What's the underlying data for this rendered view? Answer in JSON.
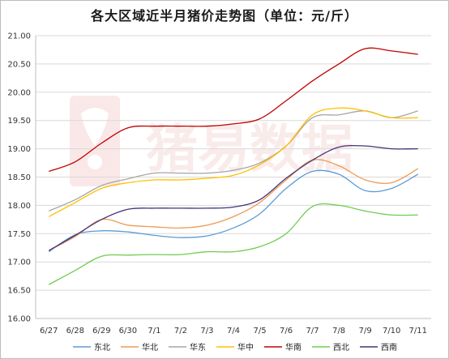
{
  "chart_data": {
    "type": "line",
    "title": "各大区域近半月猪价走势图（单位：元/斤）",
    "x": [
      "6/27",
      "6/28",
      "6/29",
      "6/30",
      "7/1",
      "7/2",
      "7/3",
      "7/4",
      "7/5",
      "7/6",
      "7/7",
      "7/8",
      "7/9",
      "7/10",
      "7/11"
    ],
    "ylim": [
      16.0,
      21.0
    ],
    "yticks": [
      "16.00",
      "16.50",
      "17.00",
      "17.50",
      "18.00",
      "18.50",
      "19.00",
      "19.50",
      "20.00",
      "20.50",
      "21.00"
    ],
    "grid": true,
    "legend_position": "bottom",
    "series": [
      {
        "name": "东北",
        "color": "#5b9bd5",
        "values": [
          17.18,
          17.48,
          17.55,
          17.53,
          17.47,
          17.43,
          17.46,
          17.6,
          17.85,
          18.3,
          18.6,
          18.55,
          18.26,
          18.3,
          18.55
        ]
      },
      {
        "name": "华北",
        "color": "#ed9a55",
        "values": [
          17.2,
          17.45,
          17.75,
          17.65,
          17.62,
          17.6,
          17.65,
          17.8,
          18.05,
          18.45,
          18.8,
          18.7,
          18.45,
          18.4,
          18.65
        ]
      },
      {
        "name": "华东",
        "color": "#a5a5a5",
        "values": [
          17.9,
          18.1,
          18.35,
          18.47,
          18.57,
          18.57,
          18.57,
          18.62,
          18.75,
          19.05,
          19.55,
          19.6,
          19.67,
          19.55,
          19.67
        ]
      },
      {
        "name": "华中",
        "color": "#ffc000",
        "values": [
          17.8,
          18.05,
          18.3,
          18.4,
          18.45,
          18.45,
          18.48,
          18.53,
          18.72,
          19.05,
          19.6,
          19.72,
          19.67,
          19.55,
          19.55
        ]
      },
      {
        "name": "华南",
        "color": "#c00000",
        "values": [
          18.6,
          18.77,
          19.1,
          19.37,
          19.4,
          19.4,
          19.4,
          19.44,
          19.53,
          19.85,
          20.2,
          20.5,
          20.77,
          20.73,
          20.67
        ]
      },
      {
        "name": "西北",
        "color": "#70cc50",
        "values": [
          16.6,
          16.85,
          17.1,
          17.12,
          17.13,
          17.13,
          17.18,
          17.18,
          17.27,
          17.5,
          17.98,
          18.0,
          17.9,
          17.83,
          17.83
        ]
      },
      {
        "name": "西南",
        "color": "#44337a",
        "values": [
          17.2,
          17.47,
          17.75,
          17.93,
          17.95,
          17.95,
          17.95,
          17.97,
          18.1,
          18.48,
          18.8,
          19.03,
          19.05,
          19.0,
          19.0
        ]
      }
    ]
  },
  "watermark": {
    "text": "猪易数据",
    "color": "#d94a4a"
  }
}
